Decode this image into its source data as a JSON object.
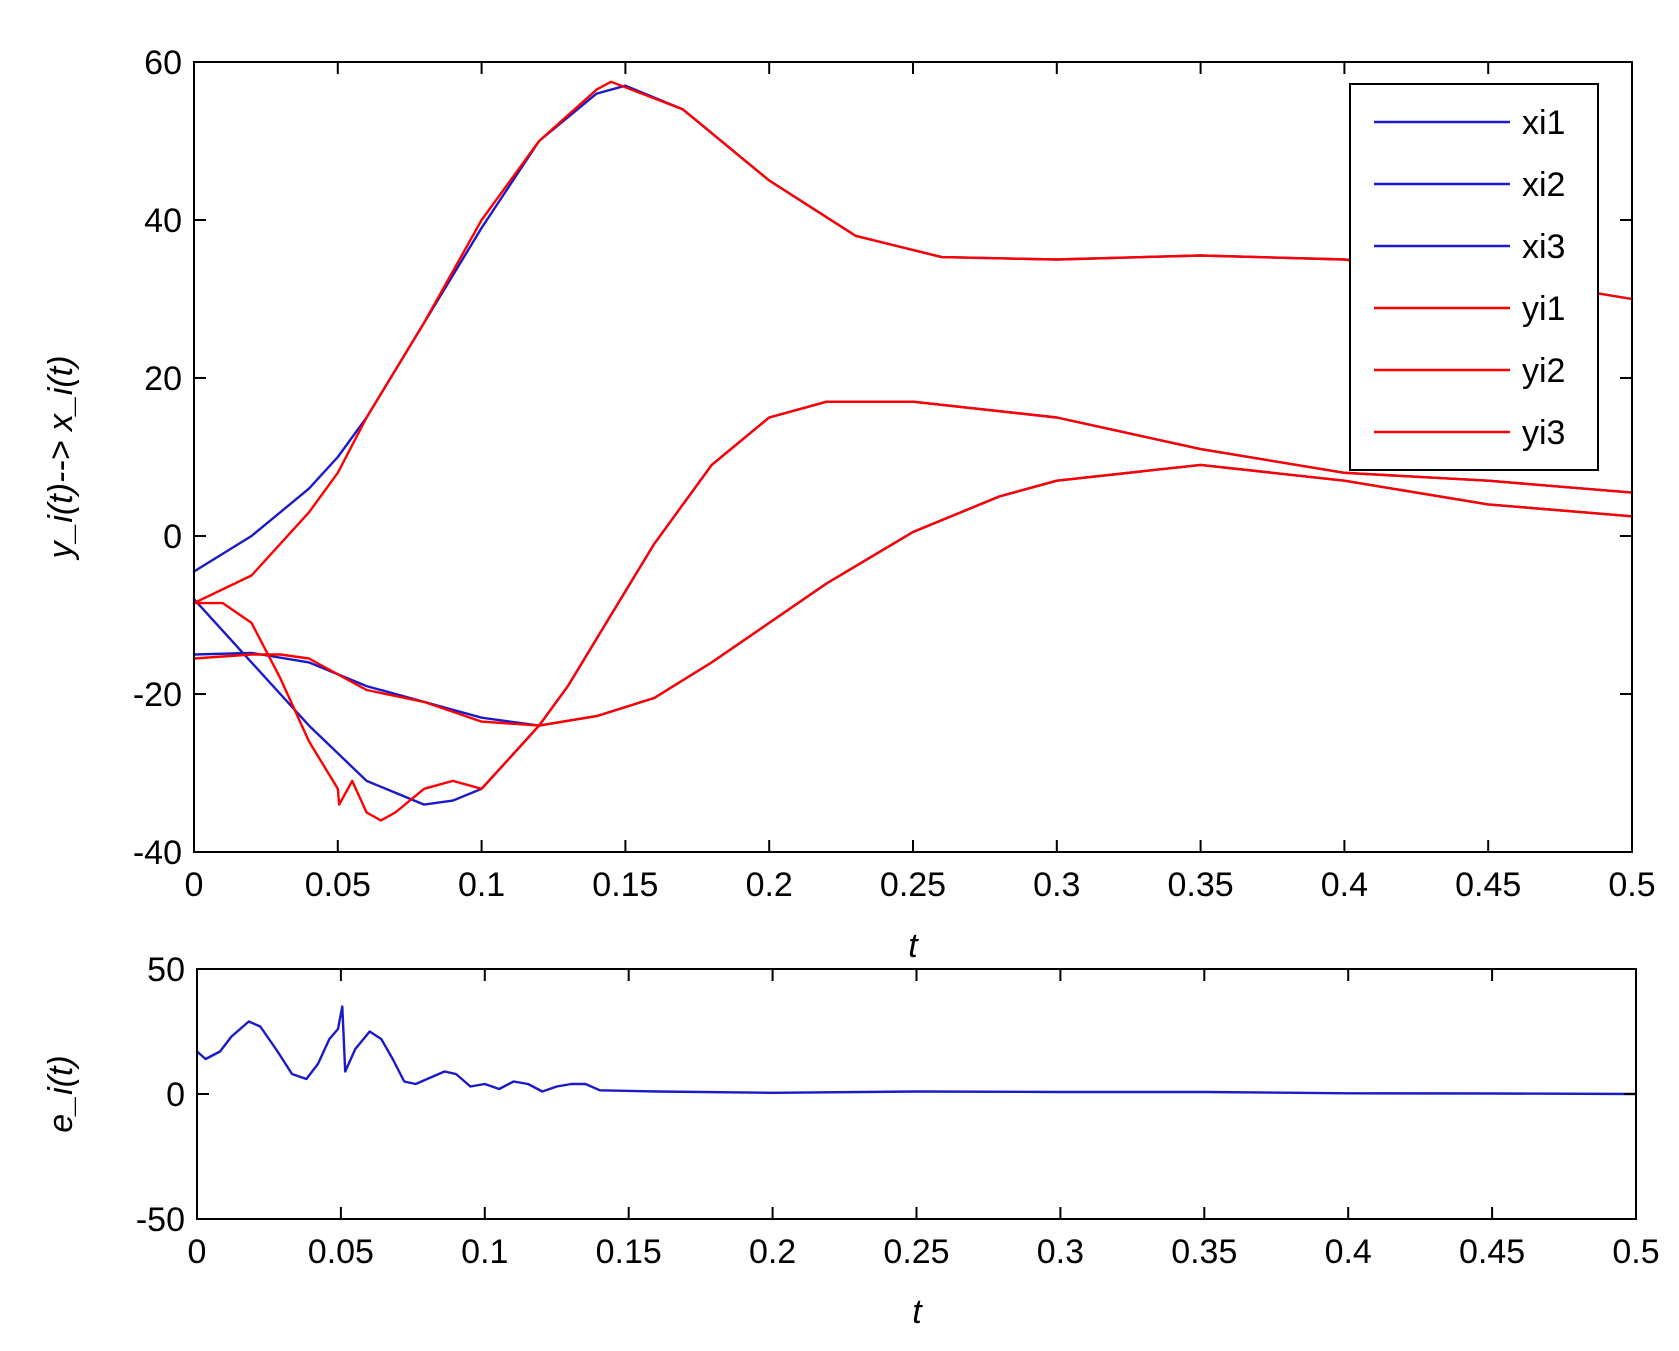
{
  "chart_data": [
    {
      "type": "line",
      "xlabel": "t",
      "ylabel": "y_i(t)--> x_i(t)",
      "xlim": [
        0,
        0.5
      ],
      "ylim": [
        -40,
        60
      ],
      "xticks": [
        "0",
        "0.05",
        "0.1",
        "0.15",
        "0.2",
        "0.25",
        "0.3",
        "0.35",
        "0.4",
        "0.45",
        "0.5"
      ],
      "yticks": [
        "-40",
        "-20",
        "0",
        "20",
        "40",
        "60"
      ],
      "grid": false,
      "legend_position": "top-right",
      "colors": {
        "x": "#1a1ac8",
        "y": "#ff0000"
      },
      "series": [
        {
          "name": "xi1",
          "color": "#1a1ac8",
          "x": [
            0,
            0.02,
            0.04,
            0.05,
            0.06,
            0.08,
            0.1,
            0.12,
            0.14,
            0.15,
            0.17,
            0.2,
            0.23,
            0.26,
            0.3,
            0.35,
            0.4,
            0.45,
            0.5
          ],
          "y": [
            -4.5,
            0,
            6,
            10,
            15,
            27,
            39,
            50,
            56,
            57,
            54,
            45,
            38,
            35.3,
            35,
            35.5,
            35,
            33,
            30
          ]
        },
        {
          "name": "xi2",
          "color": "#1a1ac8",
          "x": [
            0,
            0.02,
            0.04,
            0.06,
            0.08,
            0.1,
            0.12,
            0.13,
            0.14,
            0.16,
            0.18,
            0.2,
            0.22,
            0.25,
            0.3,
            0.35,
            0.4,
            0.45,
            0.5
          ],
          "y": [
            -15,
            -14.8,
            -16,
            -19,
            -21,
            -23,
            -24,
            -19,
            -13,
            -1,
            9,
            15,
            17,
            17,
            15,
            11,
            8,
            7,
            5.5
          ]
        },
        {
          "name": "xi3",
          "color": "#1a1ac8",
          "x": [
            0,
            0.02,
            0.04,
            0.06,
            0.08,
            0.09,
            0.1,
            0.11,
            0.12,
            0.14,
            0.16,
            0.18,
            0.2,
            0.22,
            0.25,
            0.28,
            0.3,
            0.35,
            0.4,
            0.45,
            0.5
          ],
          "y": [
            -8,
            -16,
            -24,
            -31,
            -34,
            -33.5,
            -32,
            -28,
            -24,
            -22.8,
            -20.5,
            -16,
            -11,
            -6,
            0.5,
            5,
            7,
            9,
            7,
            4,
            2.5
          ]
        },
        {
          "name": "yi1",
          "color": "#ff0000",
          "x": [
            0,
            0.02,
            0.04,
            0.05,
            0.06,
            0.08,
            0.1,
            0.12,
            0.14,
            0.145,
            0.17,
            0.2,
            0.23,
            0.26,
            0.3,
            0.35,
            0.4,
            0.45,
            0.5
          ],
          "y": [
            -8.5,
            -5,
            3,
            8,
            15,
            27,
            40,
            50,
            56.5,
            57.5,
            54,
            45,
            38,
            35.3,
            35,
            35.5,
            35,
            33,
            30
          ]
        },
        {
          "name": "yi2",
          "color": "#ff0000",
          "x": [
            0,
            0.02,
            0.03,
            0.04,
            0.05,
            0.06,
            0.08,
            0.1,
            0.12,
            0.13,
            0.14,
            0.16,
            0.18,
            0.2,
            0.22,
            0.25,
            0.3,
            0.35,
            0.4,
            0.45,
            0.5
          ],
          "y": [
            -15.5,
            -15,
            -15,
            -15.5,
            -17.5,
            -19.5,
            -21,
            -23.5,
            -24,
            -19,
            -13,
            -1,
            9,
            15,
            17,
            17,
            15,
            11,
            8,
            7,
            5.5
          ]
        },
        {
          "name": "yi3",
          "color": "#ff0000",
          "x": [
            0,
            0.01,
            0.02,
            0.03,
            0.04,
            0.05,
            0.0505,
            0.055,
            0.06,
            0.065,
            0.07,
            0.08,
            0.09,
            0.1,
            0.11,
            0.12,
            0.14,
            0.16,
            0.18,
            0.2,
            0.22,
            0.25,
            0.28,
            0.3,
            0.35,
            0.4,
            0.45,
            0.5
          ],
          "y": [
            -8.5,
            -8.5,
            -11,
            -18,
            -26,
            -32,
            -34,
            -31,
            -35,
            -36,
            -35,
            -32,
            -31,
            -32,
            -28,
            -24,
            -22.8,
            -20.5,
            -16,
            -11,
            -6,
            0.5,
            5,
            7,
            9,
            7,
            4,
            2.5
          ]
        }
      ]
    },
    {
      "type": "line",
      "xlabel": "t",
      "ylabel": "e_i(t)",
      "xlim": [
        0,
        0.5
      ],
      "ylim": [
        -50,
        50
      ],
      "xticks": [
        "0",
        "0.05",
        "0.1",
        "0.15",
        "0.2",
        "0.25",
        "0.3",
        "0.35",
        "0.4",
        "0.45",
        "0.5"
      ],
      "yticks": [
        "-50",
        "0",
        "50"
      ],
      "grid": false,
      "series": [
        {
          "color": "#1a1ac8",
          "x": [
            0,
            0.003,
            0.008,
            0.012,
            0.018,
            0.022,
            0.028,
            0.033,
            0.038,
            0.042,
            0.046,
            0.049,
            0.0505,
            0.0515,
            0.055,
            0.06,
            0.064,
            0.068,
            0.072,
            0.076,
            0.08,
            0.086,
            0.09,
            0.095,
            0.1,
            0.105,
            0.11,
            0.115,
            0.12,
            0.125,
            0.13,
            0.135,
            0.14,
            0.16,
            0.2,
            0.25,
            0.3,
            0.35,
            0.4,
            0.45,
            0.5
          ],
          "y": [
            17,
            14,
            17,
            23,
            29,
            27,
            17,
            8,
            6,
            12,
            22,
            26,
            35,
            9,
            18,
            25,
            22,
            14,
            5,
            4,
            6,
            9,
            8,
            3,
            4,
            2,
            5,
            4,
            1,
            3,
            4,
            4,
            1.5,
            1,
            0.5,
            1,
            0.8,
            0.8,
            0.3,
            0.2,
            0
          ]
        }
      ]
    }
  ]
}
